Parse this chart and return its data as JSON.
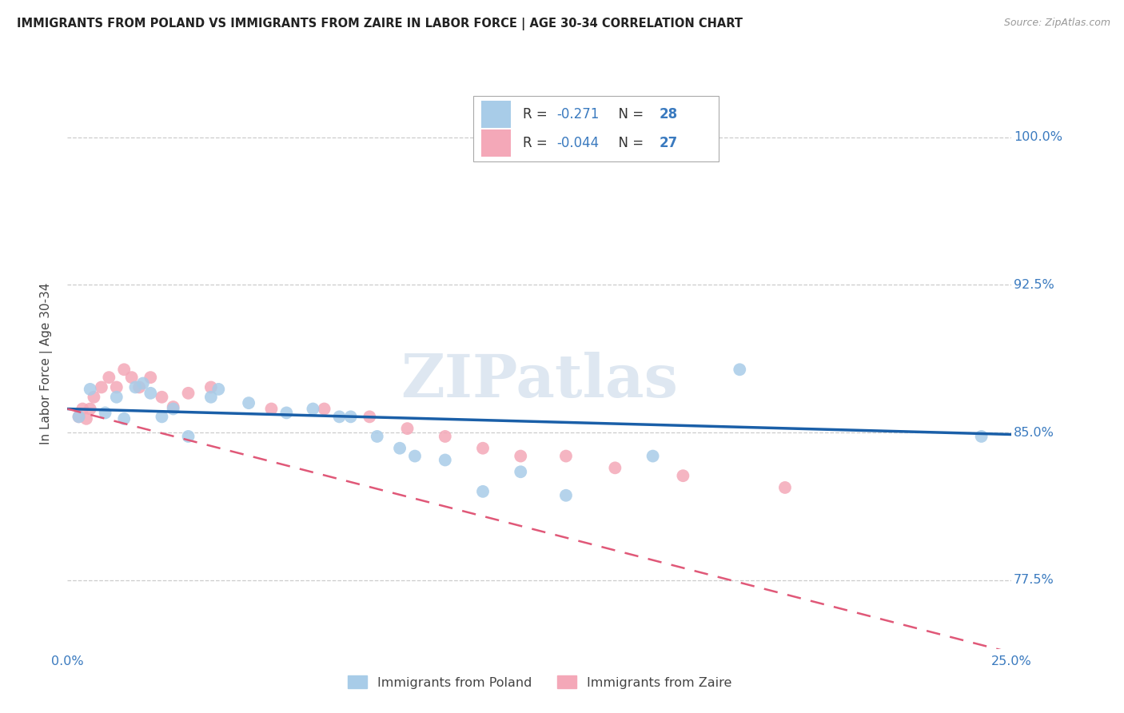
{
  "title": "IMMIGRANTS FROM POLAND VS IMMIGRANTS FROM ZAIRE IN LABOR FORCE | AGE 30-34 CORRELATION CHART",
  "source": "Source: ZipAtlas.com",
  "ylabel": "In Labor Force | Age 30-34",
  "r_poland": -0.271,
  "n_poland": 28,
  "r_zaire": -0.044,
  "n_zaire": 27,
  "xmin": 0.0,
  "xmax": 0.25,
  "ymin": 0.74,
  "ymax": 1.03,
  "ytick_vals": [
    0.775,
    0.85,
    0.925,
    1.0
  ],
  "ytick_labels": [
    "77.5%",
    "85.0%",
    "92.5%",
    "100.0%"
  ],
  "xtick_vals": [
    0.0,
    0.0625,
    0.125,
    0.1875,
    0.25
  ],
  "xtick_labels": [
    "0.0%",
    "",
    "",
    "",
    "25.0%"
  ],
  "color_poland": "#a8cce8",
  "color_zaire": "#f4a8b8",
  "line_color_poland": "#1a5fa8",
  "line_color_zaire": "#e05878",
  "watermark": "ZIPatlas",
  "blue_line_x0": 0.0,
  "blue_line_y0": 0.862,
  "blue_line_x1": 0.25,
  "blue_line_y1": 0.849,
  "pink_line_x0": 0.0,
  "pink_line_y0": 0.862,
  "pink_line_x1": 0.25,
  "pink_line_y1": 0.738,
  "blue_x": [
    0.003,
    0.006,
    0.01,
    0.013,
    0.015,
    0.018,
    0.02,
    0.022,
    0.025,
    0.028,
    0.032,
    0.038,
    0.04,
    0.048,
    0.058,
    0.065,
    0.072,
    0.075,
    0.082,
    0.088,
    0.092,
    0.1,
    0.11,
    0.12,
    0.132,
    0.155,
    0.178,
    0.242
  ],
  "blue_y": [
    0.858,
    0.872,
    0.86,
    0.868,
    0.857,
    0.873,
    0.875,
    0.87,
    0.858,
    0.862,
    0.848,
    0.868,
    0.872,
    0.865,
    0.86,
    0.862,
    0.858,
    0.858,
    0.848,
    0.842,
    0.838,
    0.836,
    0.82,
    0.83,
    0.818,
    0.838,
    0.882,
    0.848
  ],
  "pink_x": [
    0.003,
    0.004,
    0.005,
    0.006,
    0.007,
    0.009,
    0.011,
    0.013,
    0.015,
    0.017,
    0.019,
    0.022,
    0.025,
    0.028,
    0.032,
    0.038,
    0.054,
    0.068,
    0.08,
    0.09,
    0.1,
    0.11,
    0.12,
    0.132,
    0.145,
    0.163,
    0.19
  ],
  "pink_y": [
    0.858,
    0.862,
    0.857,
    0.862,
    0.868,
    0.873,
    0.878,
    0.873,
    0.882,
    0.878,
    0.873,
    0.878,
    0.868,
    0.863,
    0.87,
    0.873,
    0.862,
    0.862,
    0.858,
    0.852,
    0.848,
    0.842,
    0.838,
    0.838,
    0.832,
    0.828,
    0.822
  ]
}
